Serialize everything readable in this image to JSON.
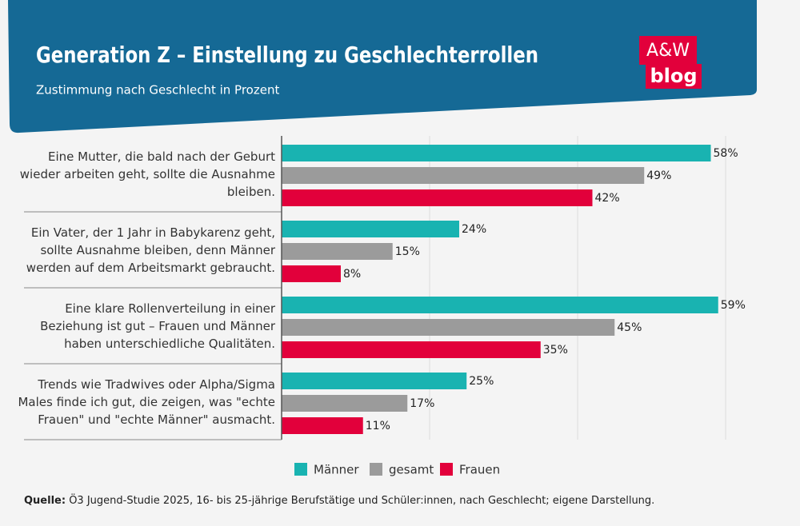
{
  "chart_data": {
    "type": "barh",
    "title": "Generation Z – Einstellung zu Geschlechterrollen",
    "subtitle": "Zustimmung nach Geschlecht in Prozent",
    "logo": [
      "A&W",
      "blog"
    ],
    "categories": [
      "Eine Mutter, die bald nach der Geburt wieder arbeiten geht, sollte die Ausnahme bleiben.",
      "Ein Vater, der 1 Jahr in Babykarenz geht, sollte Ausnahme bleiben, denn Männer werden auf dem Arbeitsmarkt gebraucht.",
      "Eine klare Rollenverteilung in einer Beziehung ist gut – Frauen und Männer haben unterschiedliche Qualitäten.",
      "Trends wie Tradwives oder Alpha/Sigma Males finde ich gut, die zeigen, was \"echte Frauen\" und \"echte Männer\" ausmacht."
    ],
    "series": [
      {
        "name": "Männer",
        "color": "#19b3b1",
        "values": [
          58,
          24,
          59,
          25
        ],
        "value_labels": [
          "58%",
          "24%",
          "59%",
          "25%"
        ]
      },
      {
        "name": "gesamt",
        "color": "#9b9b9b",
        "values": [
          49,
          15,
          45,
          17
        ],
        "value_labels": [
          "49%",
          "15%",
          "45%",
          "17%"
        ]
      },
      {
        "name": "Frauen",
        "color": "#e2003b",
        "values": [
          42,
          8,
          35,
          11
        ],
        "value_labels": [
          "42%",
          "8%",
          "35%",
          "11%"
        ]
      }
    ],
    "xlim": [
      0,
      60
    ],
    "xticks": [
      20,
      40,
      60
    ],
    "grid": true,
    "source_label": "Quelle:",
    "source": "Ö3 Jugend-Studie 2025, 16- bis 25-jährige Berufstätige und Schüler:innen, nach Geschlecht; eigene Darstellung."
  }
}
